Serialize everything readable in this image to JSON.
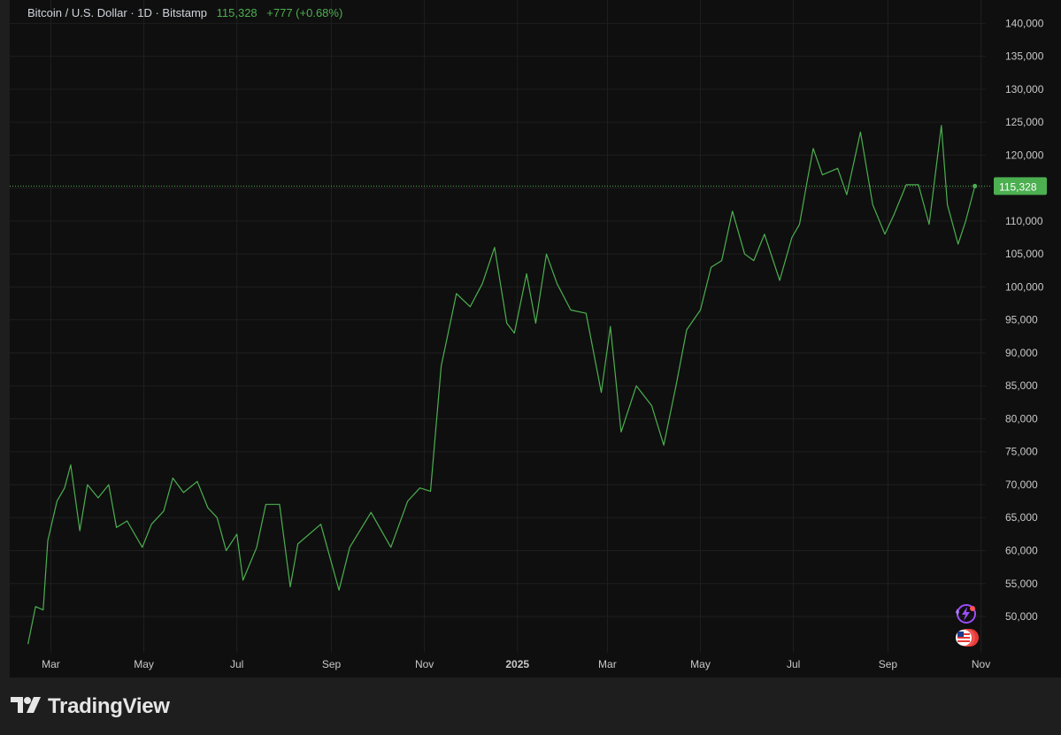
{
  "legend": {
    "symbol": "Bitcoin / U.S. Dollar · 1D · Bitstamp",
    "price": "115,328",
    "change": "+777 (+0.68%)"
  },
  "brand": {
    "name": "TradingView"
  },
  "colors": {
    "line": "#4caf50",
    "background": "#0f0f0f",
    "grid": "#1f1f1f",
    "axis_text": "#c8c8c8"
  },
  "icons": [
    "tradingview-logo-icon",
    "lightning-bolt-icon",
    "us-flag-icon"
  ],
  "chart_data": {
    "type": "line",
    "title": "Bitcoin / U.S. Dollar · 1D · Bitstamp",
    "xlabel": "",
    "ylabel": "",
    "grid": true,
    "y_axis_side": "right",
    "ylim": [
      44500,
      143000
    ],
    "y_ticks": [
      "50,000",
      "55,000",
      "60,000",
      "65,000",
      "70,000",
      "75,000",
      "80,000",
      "85,000",
      "90,000",
      "95,000",
      "100,000",
      "105,000",
      "110,000",
      "115,000",
      "120,000",
      "125,000",
      "130,000",
      "135,000",
      "140,000"
    ],
    "x_ticks": [
      "Mar",
      "May",
      "Jul",
      "Sep",
      "Nov",
      "2025",
      "Mar",
      "May",
      "Jul",
      "Sep",
      "Nov"
    ],
    "last_value_label": "115,328",
    "series": [
      {
        "x": [
          "2024-02-15",
          "2024-02-20",
          "2024-02-25",
          "2024-02-28",
          "2024-03-05",
          "2024-03-10",
          "2024-03-14",
          "2024-03-20",
          "2024-03-25",
          "2024-04-01",
          "2024-04-08",
          "2024-04-13",
          "2024-04-20",
          "2024-04-30",
          "2024-05-06",
          "2024-05-14",
          "2024-05-20",
          "2024-05-27",
          "2024-06-05",
          "2024-06-12",
          "2024-06-18",
          "2024-06-24",
          "2024-07-01",
          "2024-07-05",
          "2024-07-14",
          "2024-07-20",
          "2024-07-29",
          "2024-08-05",
          "2024-08-10",
          "2024-08-25",
          "2024-09-06",
          "2024-09-13",
          "2024-09-27",
          "2024-10-10",
          "2024-10-21",
          "2024-10-29",
          "2024-11-05",
          "2024-11-12",
          "2024-11-22",
          "2024-12-01",
          "2024-12-09",
          "2024-12-17",
          "2024-12-25",
          "2024-12-30",
          "2025-01-07",
          "2025-01-13",
          "2025-01-20",
          "2025-01-27",
          "2025-02-05",
          "2025-02-15",
          "2025-02-25",
          "2025-03-03",
          "2025-03-10",
          "2025-03-20",
          "2025-03-30",
          "2025-04-07",
          "2025-04-15",
          "2025-04-22",
          "2025-05-01",
          "2025-05-08",
          "2025-05-15",
          "2025-05-22",
          "2025-05-30",
          "2025-06-05",
          "2025-06-12",
          "2025-06-22",
          "2025-06-30",
          "2025-07-05",
          "2025-07-10",
          "2025-07-14",
          "2025-07-20",
          "2025-07-30",
          "2025-08-05",
          "2025-08-14",
          "2025-08-22",
          "2025-08-30",
          "2025-09-05",
          "2025-09-13",
          "2025-09-21",
          "2025-09-28",
          "2025-10-06",
          "2025-10-10",
          "2025-10-17",
          "2025-10-22",
          "2025-10-28"
        ],
        "y": [
          45800,
          51500,
          51000,
          61500,
          67500,
          69500,
          73000,
          63000,
          70000,
          68000,
          70000,
          63500,
          64500,
          60500,
          64000,
          66000,
          71000,
          68800,
          70500,
          66500,
          65000,
          60000,
          62500,
          55500,
          60500,
          67000,
          67000,
          54500,
          61000,
          64000,
          54000,
          60500,
          65800,
          60500,
          67500,
          69500,
          69000,
          88000,
          99000,
          97000,
          100500,
          106000,
          94500,
          93000,
          102000,
          94500,
          105000,
          100500,
          96500,
          96000,
          84000,
          94000,
          78000,
          85000,
          82000,
          76000,
          85000,
          93500,
          96500,
          103000,
          104000,
          111500,
          105000,
          104000,
          108000,
          101000,
          107500,
          109500,
          116000,
          121000,
          117000,
          118000,
          114000,
          123500,
          112500,
          108000,
          111000,
          115500,
          115500,
          109500,
          124500,
          112500,
          106500,
          110000,
          115300
        ]
      }
    ]
  }
}
